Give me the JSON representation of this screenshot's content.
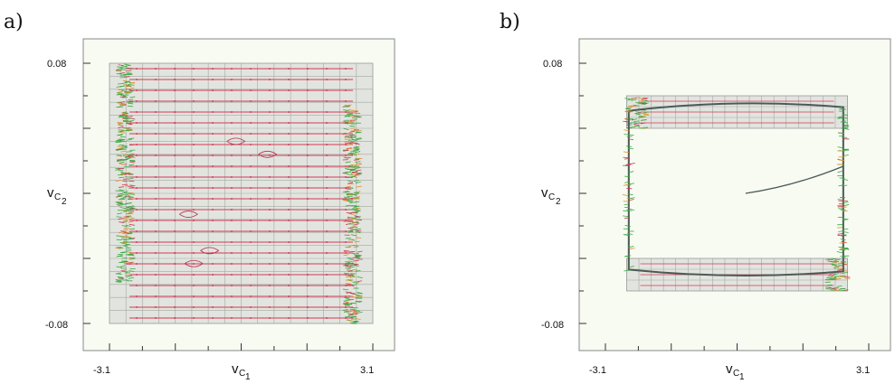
{
  "panels": [
    {
      "id": "a",
      "label": "a)",
      "xlabel": "v",
      "xlabel_sub": "C",
      "xlabel_subsub": "1",
      "ylabel": "v",
      "ylabel_sub": "C",
      "ylabel_subsub": "2",
      "xticks": [
        "-3.1",
        "3.1"
      ],
      "yticks": [
        "0.08",
        "-0.08"
      ]
    },
    {
      "id": "b",
      "label": "b)",
      "xlabel": "v",
      "xlabel_sub": "C",
      "xlabel_subsub": "1",
      "ylabel": "v",
      "ylabel_sub": "C",
      "ylabel_subsub": "2",
      "xticks": [
        "-3.1",
        "3.1"
      ],
      "yticks": [
        "0.08",
        "-0.08"
      ]
    }
  ],
  "chart_data": [
    {
      "type": "scatter",
      "xlim": [
        -3.1,
        3.1
      ],
      "ylim": [
        -0.08,
        0.08
      ],
      "grid_region": {
        "x": [
          -3.1,
          3.1
        ],
        "y": [
          -0.08,
          0.08
        ]
      },
      "attractor_bands": [
        {
          "x": [
            -2.9,
            -2.55
          ],
          "y": [
            -0.055,
            0.08
          ]
        },
        {
          "x": [
            2.45,
            2.8
          ],
          "y": [
            -0.08,
            0.055
          ]
        }
      ],
      "flow_rows": 24
    },
    {
      "type": "scatter",
      "xlim": [
        -3.1,
        3.1
      ],
      "ylim": [
        -0.08,
        0.08
      ],
      "grid_regions": [
        {
          "x": [
            -2.6,
            2.6
          ],
          "y": [
            0.04,
            0.06
          ]
        },
        {
          "x": [
            -2.6,
            2.6
          ],
          "y": [
            -0.06,
            -0.04
          ]
        }
      ],
      "limit_cycle": {
        "left_x": -2.55,
        "right_x": 2.5,
        "top_y": 0.053,
        "bottom_y": -0.048
      },
      "trajectory_start": [
        0.2,
        0.0
      ]
    }
  ]
}
